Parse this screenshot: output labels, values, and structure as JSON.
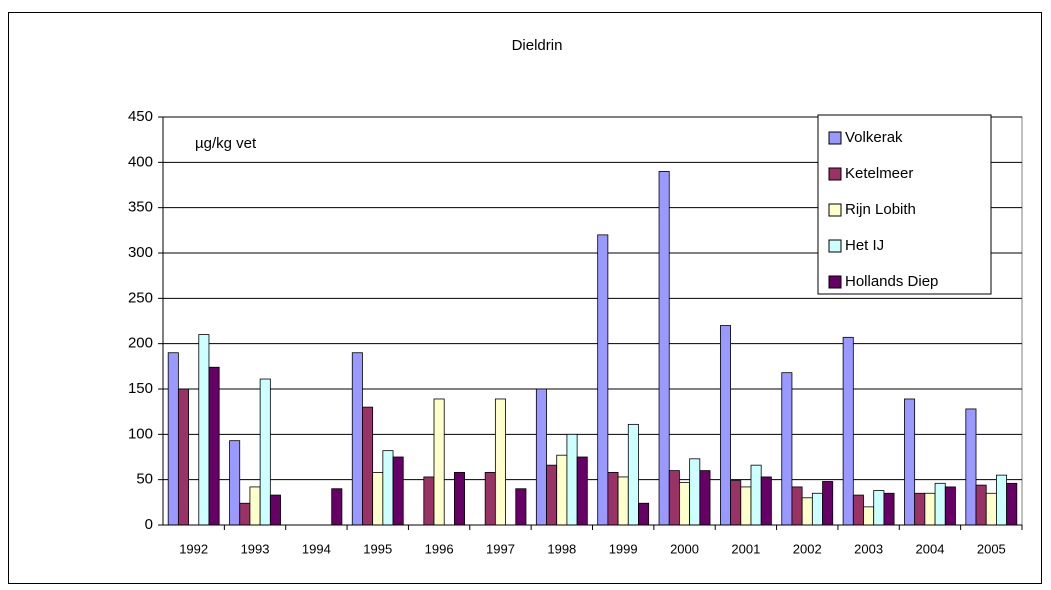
{
  "chart_data": {
    "type": "bar",
    "title": "Dieldrin",
    "annotation": "µg/kg vet",
    "categories": [
      "1992",
      "1993",
      "1994",
      "1995",
      "1996",
      "1997",
      "1998",
      "1999",
      "2000",
      "2001",
      "2002",
      "2003",
      "2004",
      "2005"
    ],
    "series": [
      {
        "name": "Volkerak",
        "color": "#9999ff",
        "values": [
          190,
          93,
          null,
          190,
          null,
          null,
          150,
          320,
          390,
          220,
          168,
          207,
          139,
          128
        ]
      },
      {
        "name": "Ketelmeer",
        "color": "#993366",
        "values": [
          150,
          24,
          null,
          130,
          53,
          58,
          66,
          58,
          60,
          49,
          42,
          33,
          35,
          44
        ]
      },
      {
        "name": "Rijn Lobith",
        "color": "#ffffcc",
        "values": [
          null,
          42,
          null,
          58,
          139,
          139,
          77,
          53,
          47,
          42,
          30,
          20,
          35,
          35
        ]
      },
      {
        "name": "Het IJ",
        "color": "#ccffff",
        "values": [
          210,
          161,
          null,
          82,
          null,
          null,
          100,
          111,
          73,
          66,
          35,
          38,
          46,
          55
        ]
      },
      {
        "name": "Hollands Diep",
        "color": "#660066",
        "values": [
          174,
          33,
          40,
          75,
          58,
          40,
          75,
          24,
          60,
          53,
          48,
          35,
          42,
          46
        ]
      }
    ],
    "ylim": [
      0,
      450
    ],
    "yticks": [
      0,
      50,
      100,
      150,
      200,
      250,
      300,
      350,
      400,
      450
    ],
    "grid": true,
    "legend": "top-right"
  }
}
